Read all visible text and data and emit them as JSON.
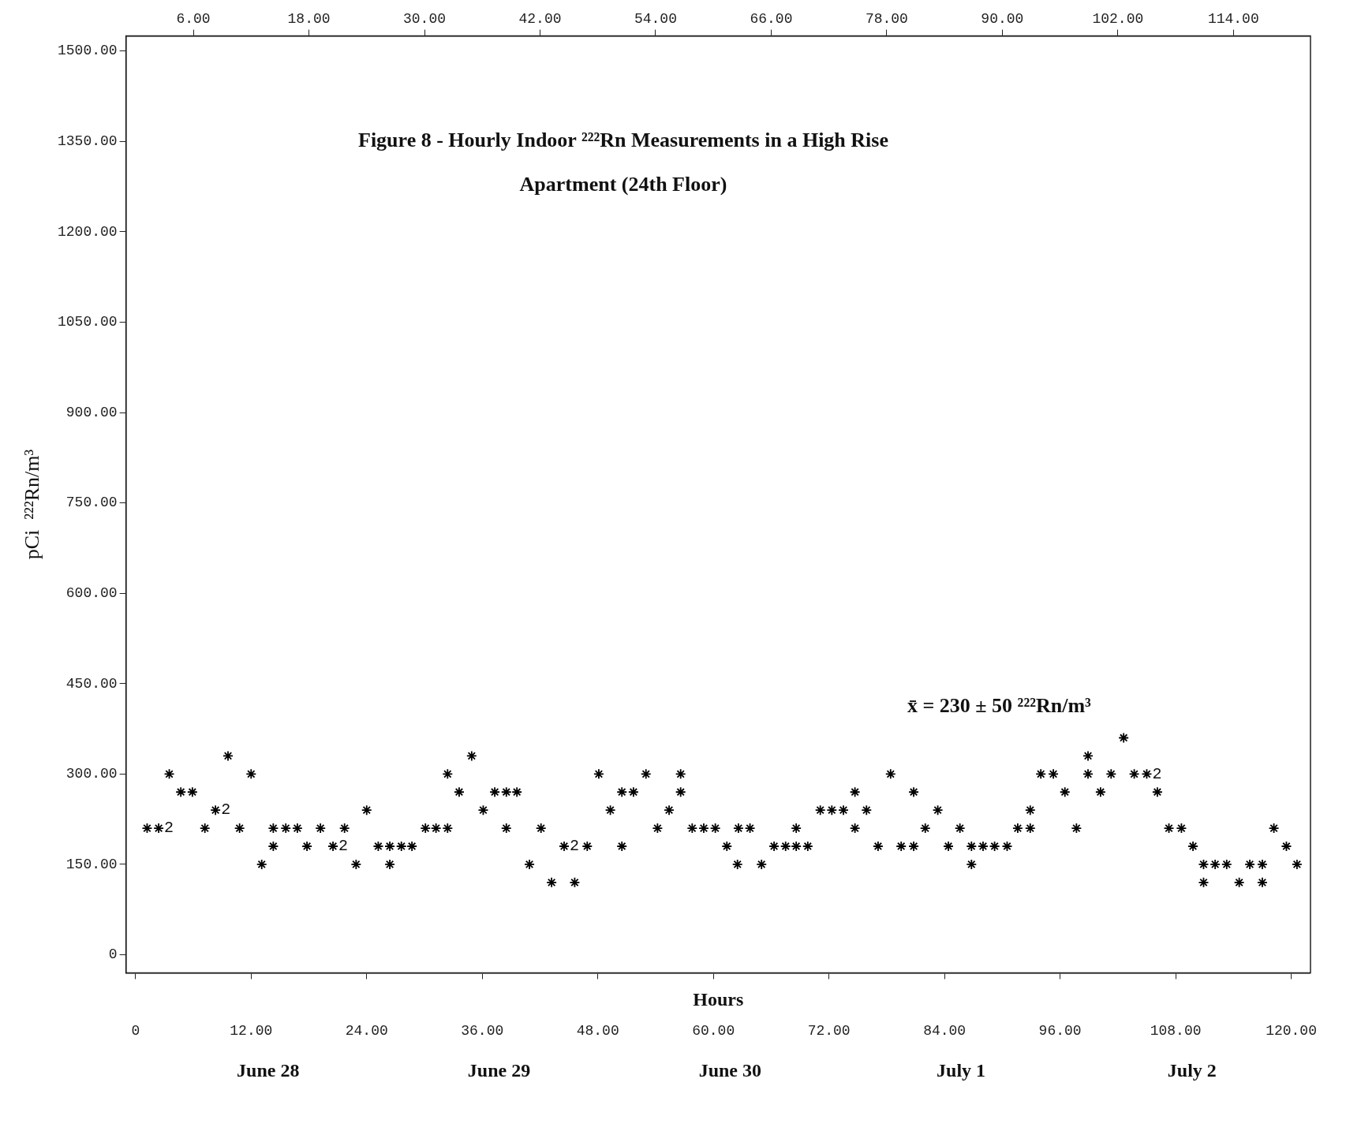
{
  "chart_data": {
    "type": "scatter",
    "title": "Figure 8 - Hourly Indoor ²²²Rn Measurements in a High Rise Apartment (24th Floor)",
    "xlabel": "Hours",
    "ylabel": "pCi  ²²²Rn/m³",
    "marker": "cross",
    "grid": false,
    "xlim": [
      -1,
      122
    ],
    "xticks": [
      {
        "value": 0,
        "label": "0"
      },
      {
        "value": 12,
        "label": "12.00"
      },
      {
        "value": 24,
        "label": "24.00"
      },
      {
        "value": 36,
        "label": "36.00"
      },
      {
        "value": 48,
        "label": "48.00"
      },
      {
        "value": 60,
        "label": "60.00"
      },
      {
        "value": 72,
        "label": "72.00"
      },
      {
        "value": 84,
        "label": "84.00"
      },
      {
        "value": 96,
        "label": "96.00"
      },
      {
        "value": 108,
        "label": "108.00"
      },
      {
        "value": 120,
        "label": "120.00"
      }
    ],
    "x2lim": [
      -1,
      122
    ],
    "x2ticks": [
      {
        "value": 6,
        "label": "6.00"
      },
      {
        "value": 18,
        "label": "18.00"
      },
      {
        "value": 30,
        "label": "30.00"
      },
      {
        "value": 42,
        "label": "42.00"
      },
      {
        "value": 54,
        "label": "54.00"
      },
      {
        "value": 66,
        "label": "66.00"
      },
      {
        "value": 78,
        "label": "78.00"
      },
      {
        "value": 90,
        "label": "90.00"
      },
      {
        "value": 102,
        "label": "102.00"
      },
      {
        "value": 114,
        "label": "114.00"
      }
    ],
    "ylim": [
      -30,
      1525
    ],
    "yticks": [
      {
        "value": 0,
        "label": "0"
      },
      {
        "value": 150,
        "label": "150.00"
      },
      {
        "value": 300,
        "label": "300.00"
      },
      {
        "value": 450,
        "label": "450.00"
      },
      {
        "value": 600,
        "label": "600.00"
      },
      {
        "value": 750,
        "label": "750.00"
      },
      {
        "value": 900,
        "label": "900.00"
      },
      {
        "value": 1050,
        "label": "1050.00"
      },
      {
        "value": 1200,
        "label": "1200.00"
      },
      {
        "value": 1350,
        "label": "1350.00"
      },
      {
        "value": 1500,
        "label": "1500.00"
      }
    ],
    "series": [
      {
        "color": "#000000",
        "x": [
          1.2,
          2.4,
          3.5,
          4.7,
          5.9,
          7.2,
          8.3,
          9.6,
          10.8,
          12.0,
          13.1,
          14.3,
          14.3,
          15.6,
          16.8,
          17.8,
          19.2,
          20.5,
          21.7,
          22.9,
          24.0,
          25.2,
          26.4,
          26.4,
          27.6,
          28.7,
          30.1,
          31.2,
          32.4,
          32.4,
          33.6,
          34.9,
          36.1,
          37.3,
          38.5,
          38.5,
          39.6,
          40.9,
          42.1,
          43.2,
          44.5,
          45.6,
          46.9,
          48.1,
          49.3,
          50.5,
          50.5,
          51.7,
          53.0,
          54.2,
          55.4,
          56.6,
          56.6,
          57.8,
          59.0,
          60.2,
          61.4,
          62.5,
          62.6,
          63.8,
          65.0,
          66.3,
          67.5,
          68.6,
          68.6,
          69.8,
          71.1,
          72.3,
          73.5,
          74.7,
          74.7,
          75.9,
          77.1,
          78.4,
          79.5,
          80.8,
          80.8,
          82.0,
          83.3,
          84.4,
          85.6,
          86.8,
          86.8,
          88.0,
          89.2,
          90.5,
          91.6,
          92.9,
          92.9,
          94.0,
          95.3,
          96.5,
          97.7,
          98.9,
          98.9,
          100.2,
          101.3,
          102.6,
          103.7,
          105.0,
          106.1,
          107.3,
          108.6,
          109.8,
          110.9,
          110.9,
          112.1,
          113.3,
          114.6,
          115.7,
          117.0,
          117.0,
          118.2,
          119.5,
          120.6
        ],
        "values": [
          210,
          210,
          300,
          270,
          270,
          210,
          240,
          330,
          210,
          300,
          150,
          210,
          180,
          210,
          210,
          180,
          210,
          180,
          210,
          150,
          240,
          180,
          180,
          150,
          180,
          180,
          210,
          210,
          210,
          300,
          270,
          330,
          240,
          270,
          270,
          210,
          270,
          150,
          210,
          120,
          180,
          120,
          180,
          300,
          240,
          180,
          270,
          270,
          300,
          210,
          240,
          300,
          270,
          210,
          210,
          210,
          180,
          150,
          210,
          210,
          150,
          180,
          180,
          180,
          210,
          180,
          240,
          240,
          240,
          270,
          210,
          240,
          180,
          300,
          180,
          180,
          270,
          210,
          240,
          180,
          210,
          150,
          180,
          180,
          180,
          180,
          210,
          210,
          240,
          300,
          300,
          270,
          210,
          300,
          330,
          270,
          300,
          360,
          300,
          300,
          270,
          210,
          210,
          180,
          150,
          120,
          150,
          150,
          120,
          150,
          150,
          120,
          210,
          180,
          150
        ]
      }
    ],
    "annotations": [
      "x̄ = 230 ± 50 ²²²Rn/m³",
      {
        "text": "2",
        "x": 2.4,
        "y": 210
      },
      {
        "text": "2",
        "x": 8.3,
        "y": 240
      },
      {
        "text": "2",
        "x": 20.5,
        "y": 180
      },
      {
        "text": "2",
        "x": 44.5,
        "y": 180
      },
      {
        "text": "2",
        "x": 105.0,
        "y": 300
      },
      "June 28",
      "June 29",
      "June 30",
      "July 1",
      "July 2"
    ]
  }
}
